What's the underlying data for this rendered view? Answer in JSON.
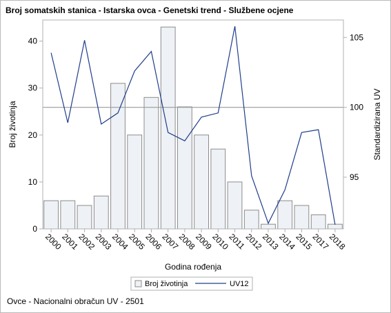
{
  "title": "Broj somatskih stanica - Istarska ovca - Genetski trend - Službene ocjene",
  "footnote": "Ovce - Nacionalni obračun UV - 2501",
  "chart_data": {
    "type": "bar+line",
    "categories": [
      "2000",
      "2001",
      "2002",
      "2003",
      "2004",
      "2005",
      "2006",
      "2007",
      "2008",
      "2009",
      "2010",
      "2011",
      "2012",
      "2013",
      "2014",
      "2015",
      "2017",
      "2018"
    ],
    "series": [
      {
        "name": "Broj životinja",
        "type": "bar",
        "axis": "left",
        "values": [
          6,
          6,
          5,
          7,
          31,
          20,
          28,
          43,
          26,
          20,
          17,
          10,
          4,
          1,
          6,
          5,
          3,
          1
        ]
      },
      {
        "name": "UV12",
        "type": "line",
        "axis": "right",
        "values": [
          103.9,
          98.9,
          104.8,
          98.8,
          99.6,
          102.6,
          104.0,
          98.2,
          97.6,
          99.3,
          99.6,
          105.8,
          95.1,
          91.7,
          94.1,
          98.2,
          98.4,
          91.6
        ]
      }
    ],
    "xlabel": "Godina rođenja",
    "ylabel_left": "Broj životinja",
    "ylabel_right": "Standardizirana UV",
    "y_left_ticks": [
      0,
      10,
      20,
      30,
      40
    ],
    "y_left_range": [
      0,
      44.5
    ],
    "y_right_ticks": [
      95,
      100,
      105
    ],
    "y_right_range": [
      91.3,
      106.25
    ],
    "reference_line_right": 100,
    "legend_position": "bottom",
    "colors": {
      "bar_fill": "#eef1f5",
      "bar_stroke": "#8c8c8c",
      "line": "#1f3d8a",
      "reference": "#9a9a9a",
      "axis": "#b0b0b0"
    }
  },
  "legend": {
    "items": [
      "Broj životinja",
      "UV12"
    ]
  }
}
